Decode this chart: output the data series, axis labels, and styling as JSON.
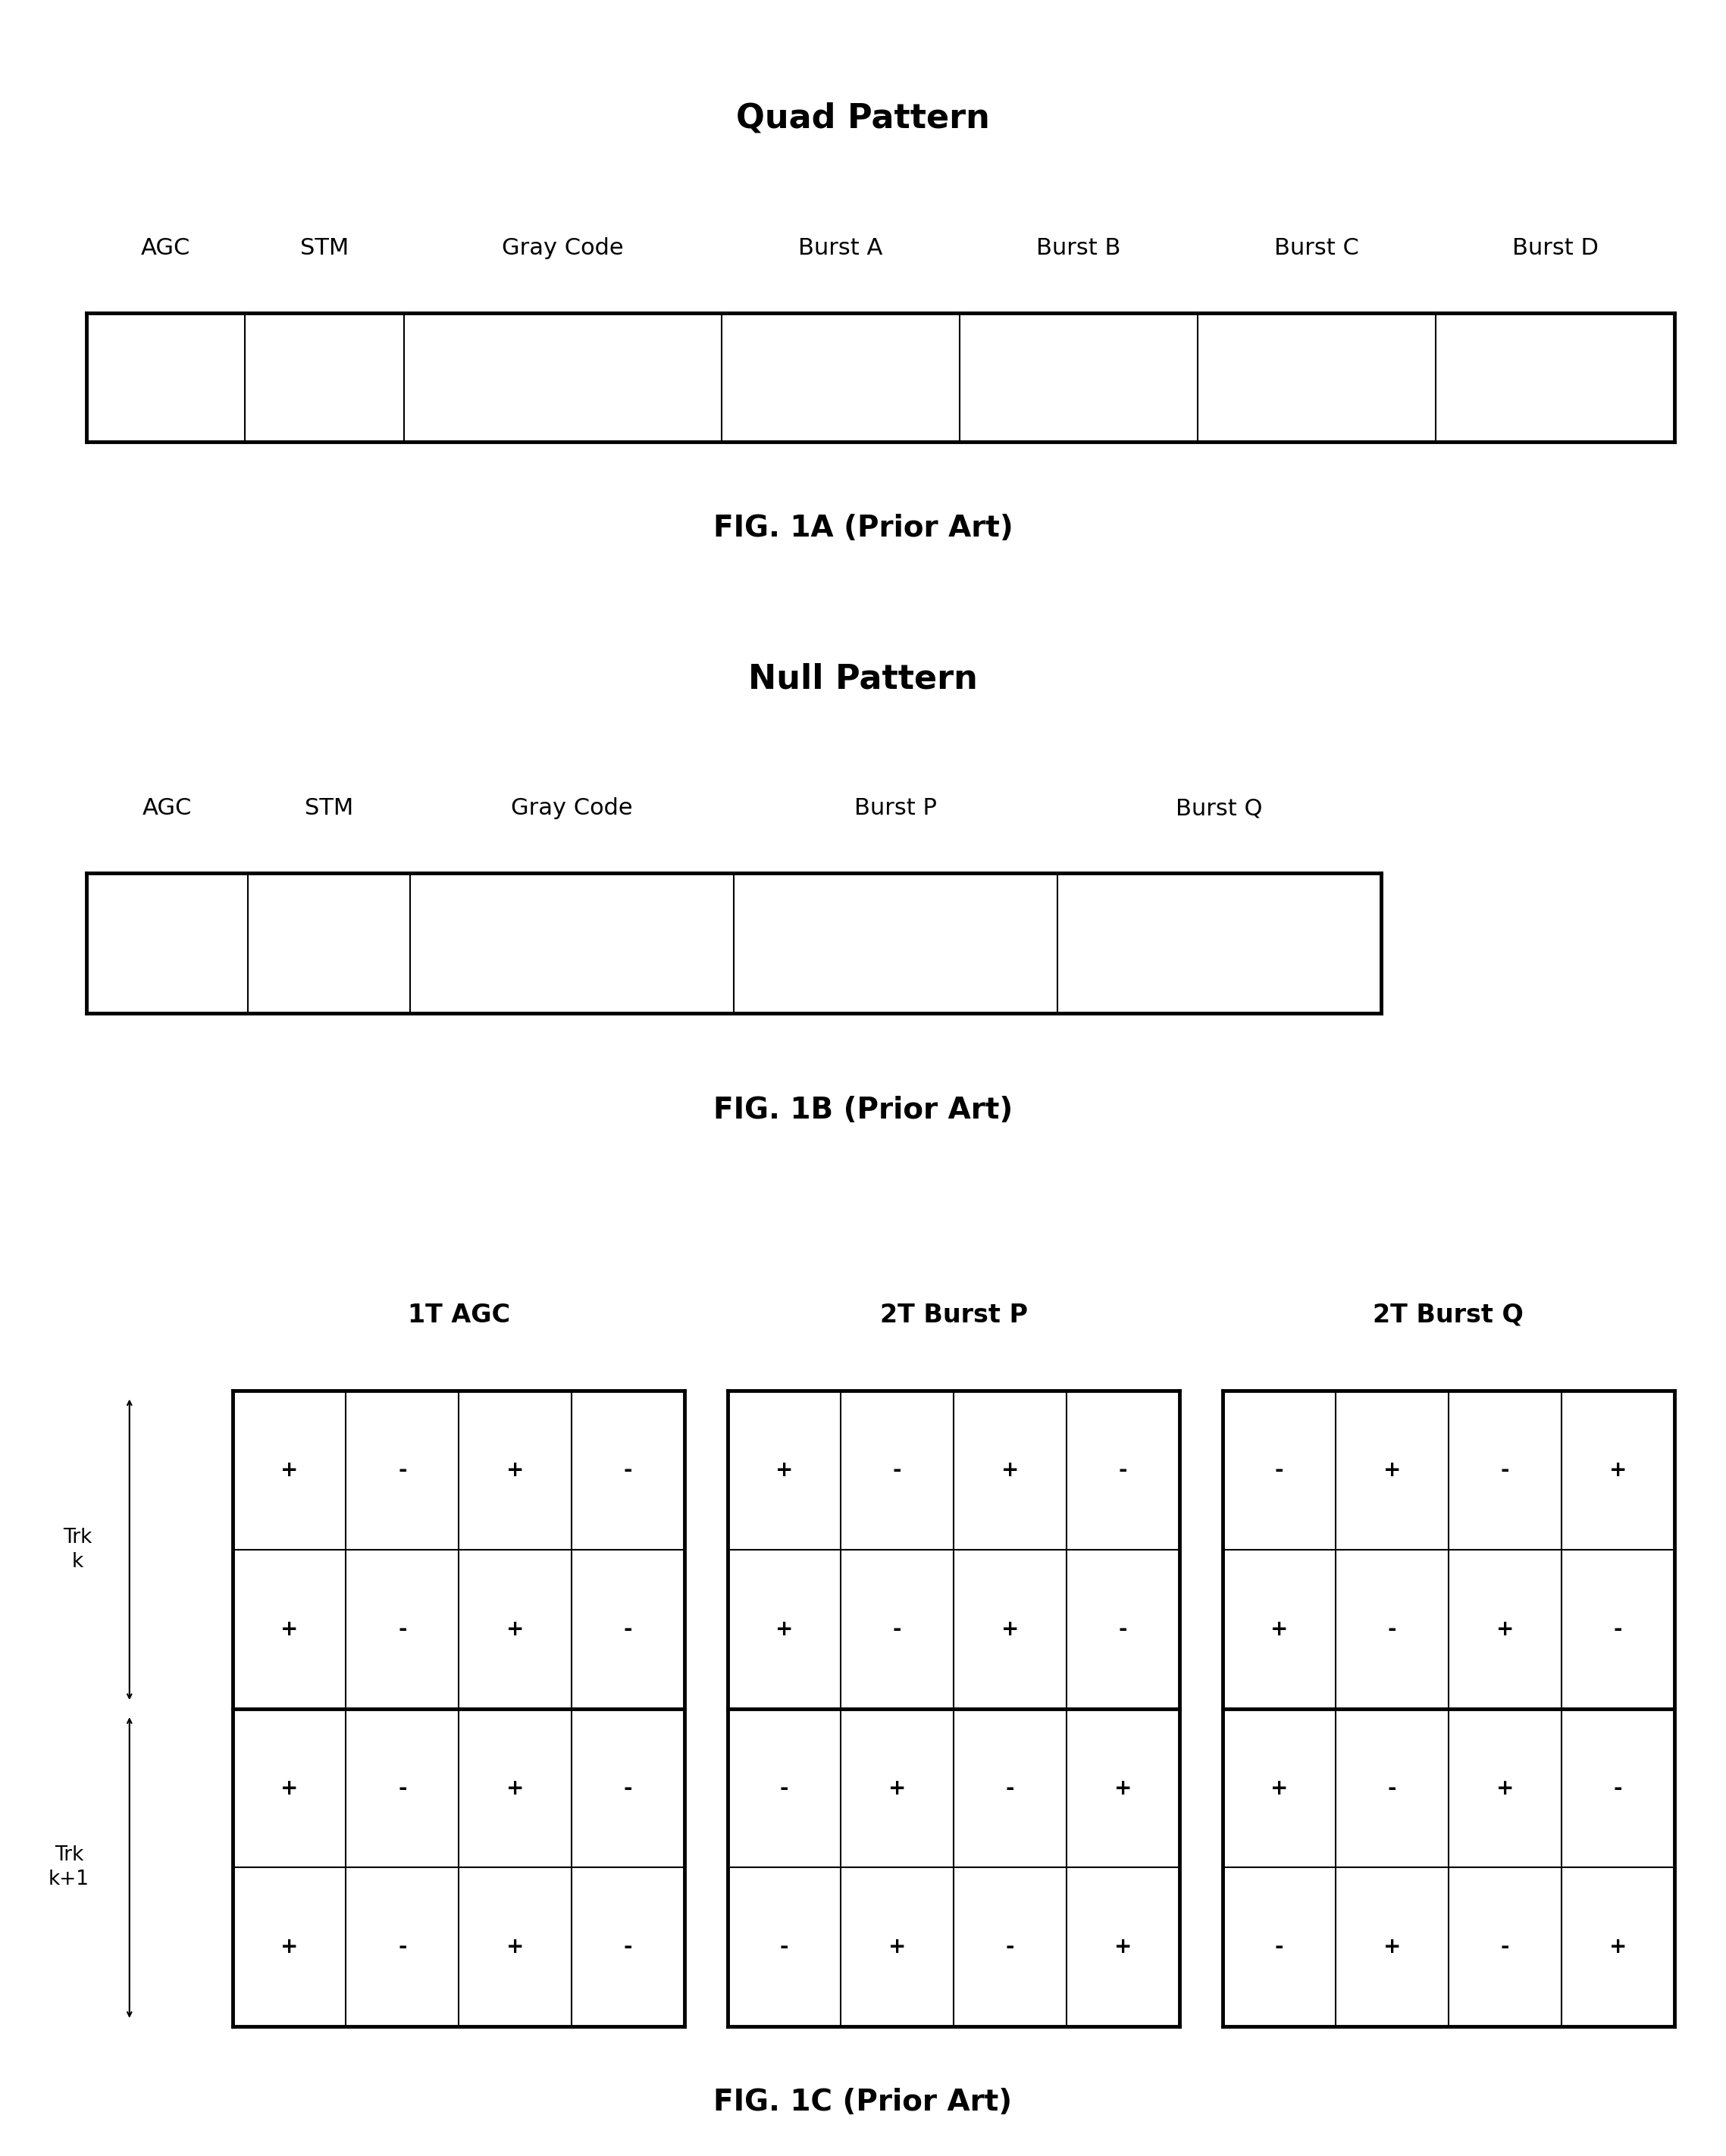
{
  "fig1a_title": "Quad Pattern",
  "fig1a_caption": "FIG. 1A (Prior Art)",
  "fig1a_segments": [
    "AGC",
    "STM",
    "Gray Code",
    "Burst A",
    "Burst B",
    "Burst C",
    "Burst D"
  ],
  "fig1a_widths": [
    1,
    1,
    2,
    1.5,
    1.5,
    1.5,
    1.5
  ],
  "fig1b_title": "Null Pattern",
  "fig1b_caption": "FIG. 1B (Prior Art)",
  "fig1b_segments": [
    "AGC",
    "STM",
    "Gray Code",
    "Burst P",
    "Burst Q"
  ],
  "fig1b_widths": [
    1,
    1,
    2,
    2,
    2
  ],
  "fig1c_caption": "FIG. 1C (Prior Art)",
  "fig1c_col1_label": "1T AGC",
  "fig1c_col2_label": "2T Burst P",
  "fig1c_col3_label": "2T Burst Q",
  "fig1c_agc_data": [
    [
      "+",
      "-",
      "+",
      "-"
    ],
    [
      "+",
      "-",
      "+",
      "-"
    ],
    [
      "+",
      "-",
      "+",
      "-"
    ],
    [
      "+",
      "-",
      "+",
      "-"
    ]
  ],
  "fig1c_burstP_data": [
    [
      "+",
      "-",
      "+",
      "-"
    ],
    [
      "+",
      "-",
      "+",
      "-"
    ],
    [
      "-",
      "+",
      "-",
      "+"
    ],
    [
      "-",
      "+",
      "-",
      "+"
    ]
  ],
  "fig1c_burstQ_data": [
    [
      "-",
      "+",
      "-",
      "+"
    ],
    [
      "+",
      "-",
      "+",
      "-"
    ],
    [
      "+",
      "-",
      "+",
      "-"
    ],
    [
      "-",
      "+",
      "-",
      "+"
    ]
  ],
  "trk_k_label": "Trk\nk",
  "trk_k1_label": "Trk\nk+1",
  "background_color": "#ffffff",
  "line_color": "#000000",
  "text_color": "#000000"
}
